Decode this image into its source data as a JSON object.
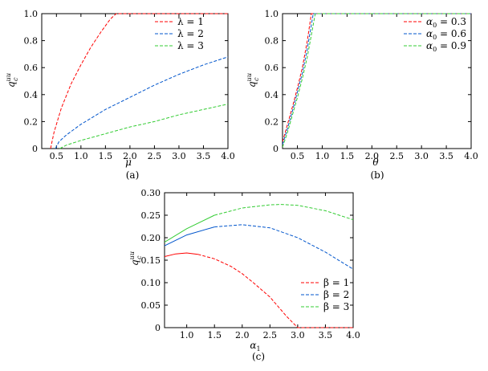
{
  "chart_data": [
    {
      "type": "line",
      "panel_label": "(a)",
      "xlabel": "μ",
      "ylabel": "q",
      "ylabel_sup": "uu",
      "ylabel_sub": "c",
      "xlim": [
        0.2,
        4.0
      ],
      "ylim": [
        0,
        1.0
      ],
      "xticks": [
        "0.5",
        "1.0",
        "1.5",
        "2.0",
        "2.5",
        "3.0",
        "3.5",
        "4.0"
      ],
      "xtick_values": [
        0.5,
        1.0,
        1.5,
        2.0,
        2.5,
        3.0,
        3.5,
        4.0
      ],
      "yticks": [
        "0",
        "0.2",
        "0.4",
        "0.6",
        "0.8",
        "1.0"
      ],
      "ytick_values": [
        0,
        0.2,
        0.4,
        0.6,
        0.8,
        1.0
      ],
      "legend_position": "top-right",
      "series": [
        {
          "name": "λ = 1",
          "color": "#ff0000",
          "dash": true,
          "x": [
            0.38,
            0.45,
            0.6,
            0.8,
            1.0,
            1.2,
            1.4,
            1.6,
            1.72,
            2.0,
            2.5,
            3.0,
            3.5,
            4.0
          ],
          "y": [
            0.0,
            0.12,
            0.3,
            0.48,
            0.62,
            0.75,
            0.86,
            0.96,
            1.0,
            1.0,
            1.0,
            1.0,
            1.0,
            1.0
          ]
        },
        {
          "name": "λ = 2",
          "color": "#0055cc",
          "dash": true,
          "x": [
            0.48,
            0.55,
            0.7,
            1.0,
            1.5,
            2.0,
            2.5,
            3.0,
            3.5,
            4.0
          ],
          "y": [
            0.0,
            0.05,
            0.1,
            0.18,
            0.29,
            0.38,
            0.47,
            0.55,
            0.62,
            0.68
          ]
        },
        {
          "name": "λ = 3",
          "color": "#33cc33",
          "dash": true,
          "x": [
            0.57,
            0.7,
            1.0,
            1.5,
            2.0,
            2.5,
            3.0,
            3.5,
            4.0
          ],
          "y": [
            0.0,
            0.025,
            0.06,
            0.11,
            0.16,
            0.2,
            0.25,
            0.29,
            0.33
          ]
        }
      ]
    },
    {
      "type": "line",
      "panel_label": "(b)",
      "xlabel": "θ",
      "ylabel": "q",
      "ylabel_sup": "uu",
      "ylabel_sub": "c",
      "xlim": [
        0.2,
        4.0
      ],
      "ylim": [
        0,
        1.0
      ],
      "xticks": [
        "0.5",
        "1.0",
        "1.5",
        "2.0",
        "2.5",
        "3.0",
        "3.5",
        "4.0"
      ],
      "xtick_values": [
        0.5,
        1.0,
        1.5,
        2.0,
        2.5,
        3.0,
        3.5,
        4.0
      ],
      "yticks": [
        "0",
        "0.2",
        "0.4",
        "0.6",
        "0.8",
        "1.0"
      ],
      "ytick_values": [
        0,
        0.2,
        0.4,
        0.6,
        0.8,
        1.0
      ],
      "legend_position": "top-right",
      "series": [
        {
          "name": "α0 = 0.3",
          "color": "#ff0000",
          "dash": true,
          "x": [
            0.2,
            0.3,
            0.4,
            0.5,
            0.6,
            0.7,
            0.78,
            1.0,
            2.0,
            3.0,
            4.0
          ],
          "y": [
            0.05,
            0.18,
            0.31,
            0.45,
            0.6,
            0.8,
            1.0,
            1.0,
            1.0,
            1.0,
            1.0
          ]
        },
        {
          "name": "α0 = 0.6",
          "color": "#0055cc",
          "dash": true,
          "x": [
            0.2,
            0.3,
            0.4,
            0.5,
            0.6,
            0.7,
            0.82,
            1.0,
            2.0,
            3.0,
            4.0
          ],
          "y": [
            0.03,
            0.15,
            0.28,
            0.42,
            0.56,
            0.74,
            1.0,
            1.0,
            1.0,
            1.0,
            1.0
          ]
        },
        {
          "name": "α0 = 0.9",
          "color": "#33cc33",
          "dash": true,
          "x": [
            0.2,
            0.3,
            0.4,
            0.5,
            0.6,
            0.7,
            0.86,
            1.0,
            2.0,
            3.0,
            4.0
          ],
          "y": [
            0.01,
            0.12,
            0.25,
            0.38,
            0.52,
            0.68,
            1.0,
            1.0,
            1.0,
            1.0,
            1.0
          ]
        }
      ]
    },
    {
      "type": "line",
      "panel_label": "(c)",
      "xlabel": "α",
      "xlabel_sub": "1",
      "ylabel": "q",
      "ylabel_sup": "uu",
      "ylabel_sub": "c",
      "xlim": [
        0.6,
        4.0
      ],
      "ylim": [
        0,
        0.3
      ],
      "xticks": [
        "1.0",
        "1.5",
        "2.0",
        "2.5",
        "3.0",
        "3.5",
        "4.0"
      ],
      "xtick_values": [
        1.0,
        1.5,
        2.0,
        2.5,
        3.0,
        3.5,
        4.0
      ],
      "yticks": [
        "0",
        "0.05",
        "0.10",
        "0.15",
        "0.20",
        "0.25",
        "0.30"
      ],
      "ytick_values": [
        0,
        0.05,
        0.1,
        0.15,
        0.2,
        0.25,
        0.3
      ],
      "legend_position": "bottom-right",
      "series": [
        {
          "name": "β = 1",
          "color": "#ff0000",
          "mixed_style": "solid then dashed",
          "x": [
            0.6,
            0.8,
            1.0,
            1.2,
            1.5,
            1.8,
            2.0,
            2.2,
            2.5,
            2.8,
            3.0,
            3.5,
            4.0
          ],
          "y": [
            0.158,
            0.164,
            0.166,
            0.163,
            0.153,
            0.136,
            0.12,
            0.1,
            0.068,
            0.025,
            0.0,
            0.0,
            0.0
          ]
        },
        {
          "name": "β = 2",
          "color": "#0055cc",
          "mixed_style": "solid then dashed",
          "x": [
            0.6,
            1.0,
            1.5,
            2.0,
            2.5,
            3.0,
            3.5,
            4.0
          ],
          "y": [
            0.182,
            0.206,
            0.224,
            0.229,
            0.222,
            0.2,
            0.168,
            0.13
          ]
        },
        {
          "name": "β = 3",
          "color": "#33cc33",
          "mixed_style": "solid then dashed",
          "x": [
            0.6,
            1.0,
            1.5,
            2.0,
            2.5,
            2.7,
            3.0,
            3.5,
            4.0
          ],
          "y": [
            0.19,
            0.22,
            0.25,
            0.266,
            0.273,
            0.274,
            0.272,
            0.26,
            0.24
          ]
        }
      ]
    }
  ]
}
